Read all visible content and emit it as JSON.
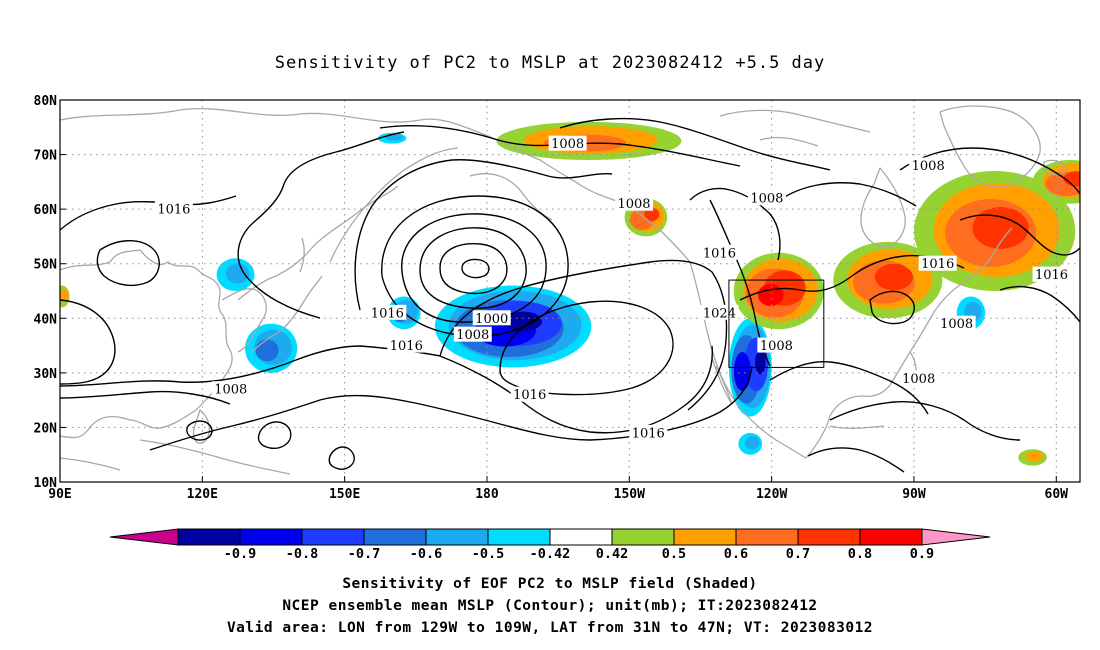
{
  "title": "Sensitivity of PC2 to MSLP at 2023082412 +5.5 day",
  "chart_data": {
    "type": "heatmap",
    "x_ticks": [
      "90E",
      "120E",
      "150E",
      "180",
      "150W",
      "120W",
      "90W",
      "60W"
    ],
    "y_ticks": [
      "10N",
      "20N",
      "30N",
      "40N",
      "50N",
      "60N",
      "70N",
      "80N"
    ],
    "lon_range": [
      90,
      305
    ],
    "lat_range": [
      10,
      80
    ],
    "grid": "dotted",
    "valid_area": {
      "lon": [
        -129,
        -109
      ],
      "lat": [
        31,
        47
      ]
    },
    "contour_labels": [
      {
        "text": "1008",
        "lon": 197,
        "lat": 72
      },
      {
        "text": "1016",
        "lon": 114,
        "lat": 60
      },
      {
        "text": "1008",
        "lon": 211,
        "lat": 61
      },
      {
        "text": "1008",
        "lon": 239,
        "lat": 62
      },
      {
        "text": "1008",
        "lon": 273,
        "lat": 68
      },
      {
        "text": "1016",
        "lon": 229,
        "lat": 52
      },
      {
        "text": "1016",
        "lon": 275,
        "lat": 50
      },
      {
        "text": "1016",
        "lon": 299,
        "lat": 48
      },
      {
        "text": "1016",
        "lon": 159,
        "lat": 41
      },
      {
        "text": "1000",
        "lon": 181,
        "lat": 40
      },
      {
        "text": "1008",
        "lon": 177,
        "lat": 37
      },
      {
        "text": "1024",
        "lon": 229,
        "lat": 41
      },
      {
        "text": "1016",
        "lon": 163,
        "lat": 35
      },
      {
        "text": "1008",
        "lon": 241,
        "lat": 35
      },
      {
        "text": "1008",
        "lon": 279,
        "lat": 39
      },
      {
        "text": "1008",
        "lon": 126,
        "lat": 27
      },
      {
        "text": "1016",
        "lon": 189,
        "lat": 26
      },
      {
        "text": "1008",
        "lon": 271,
        "lat": 29
      },
      {
        "text": "1016",
        "lon": 214,
        "lat": 19
      }
    ],
    "colorbar": {
      "labels": [
        "-0.9",
        "-0.8",
        "-0.7",
        "-0.6",
        "-0.5",
        "-0.42",
        "0.42",
        "0.5",
        "0.6",
        "0.7",
        "0.8",
        "0.9"
      ],
      "colors": [
        "#c8008c",
        "#0000a0",
        "#0000f0",
        "#1e3cff",
        "#1e6edc",
        "#1eaaf0",
        "#00dcff",
        "#ffffff",
        "#96d232",
        "#ffa000",
        "#ff6e1e",
        "#ff3200",
        "#ff0000",
        "#ff96c8"
      ]
    },
    "shaded_regions": [
      {
        "sign": "negative",
        "lon": [
          169,
          202
        ],
        "lat": [
          31,
          46
        ],
        "peak": -0.9
      },
      {
        "sign": "negative",
        "lon": [
          231,
          240
        ],
        "lat": [
          22,
          40
        ],
        "peak": -0.9
      },
      {
        "sign": "negative",
        "lon": [
          129,
          140
        ],
        "lat": [
          30,
          39
        ],
        "peak": -0.6
      },
      {
        "sign": "negative",
        "lon": [
          159,
          166
        ],
        "lat": [
          38,
          44
        ],
        "peak": -0.6
      },
      {
        "sign": "negative",
        "lon": [
          123,
          131
        ],
        "lat": [
          45,
          51
        ],
        "peak": -0.5
      },
      {
        "sign": "negative",
        "lon": [
          157,
          163
        ],
        "lat": [
          72,
          74
        ],
        "peak": -0.5
      },
      {
        "sign": "negative",
        "lon": [
          233,
          238
        ],
        "lat": [
          15,
          19
        ],
        "peak": -0.5
      },
      {
        "sign": "negative",
        "lon": [
          279,
          285
        ],
        "lat": [
          38,
          44
        ],
        "peak": -0.5
      },
      {
        "sign": "positive",
        "lon": [
          182,
          221
        ],
        "lat": [
          69,
          76
        ],
        "peak": 0.6
      },
      {
        "sign": "positive",
        "lon": [
          209,
          218
        ],
        "lat": [
          55,
          62
        ],
        "peak": 0.7
      },
      {
        "sign": "positive",
        "lon": [
          232,
          251
        ],
        "lat": [
          38,
          52
        ],
        "peak": 0.8
      },
      {
        "sign": "positive",
        "lon": [
          253,
          276
        ],
        "lat": [
          40,
          54
        ],
        "peak": 0.7
      },
      {
        "sign": "positive",
        "lon": [
          270,
          304
        ],
        "lat": [
          45,
          67
        ],
        "peak": 0.7
      },
      {
        "sign": "positive",
        "lon": [
          295,
          311
        ],
        "lat": [
          61,
          69
        ],
        "peak": 0.7
      },
      {
        "sign": "positive",
        "lon": [
          292,
          298
        ],
        "lat": [
          13,
          16
        ],
        "peak": 0.5
      },
      {
        "sign": "positive",
        "lon": [
          89,
          92
        ],
        "lat": [
          42,
          46
        ],
        "peak": 0.5
      }
    ]
  },
  "captions": [
    "Sensitivity of EOF PC2 to MSLP field (Shaded)",
    "NCEP ensemble mean MSLP (Contour); unit(mb); IT:2023082412",
    "Valid area: LON from 129W to 109W, LAT from 31N to 47N; VT: 2023083012"
  ]
}
